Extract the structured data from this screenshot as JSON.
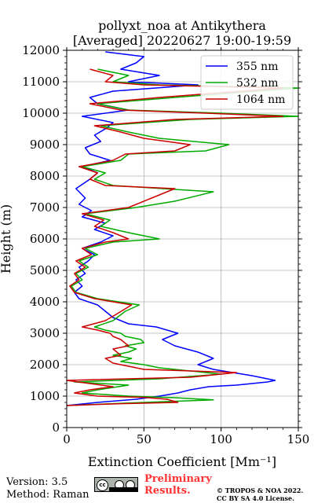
{
  "chart_data": {
    "type": "line",
    "title_line1": "pollyxt_noa at Antikythera",
    "title_line2": "[Averaged] 20220627 19:00-19:59",
    "xlabel": "Extinction Coefficient [Mm⁻¹]",
    "ylabel": "Height (m)",
    "xlim": [
      0,
      150
    ],
    "ylim": [
      0,
      12000
    ],
    "xticks": [
      "0",
      "50",
      "100",
      "150"
    ],
    "yticks": [
      "0",
      "1000",
      "2000",
      "3000",
      "4000",
      "5000",
      "6000",
      "7000",
      "8000",
      "9000",
      "10000",
      "11000",
      "12000"
    ],
    "grid": true,
    "legend_position": "top-right",
    "series": [
      {
        "name": "355 nm",
        "color": "#0000ff",
        "points": [
          [
            0,
            700
          ],
          [
            20,
            800
          ],
          [
            45,
            900
          ],
          [
            60,
            1000
          ],
          [
            72,
            1100
          ],
          [
            80,
            1200
          ],
          [
            92,
            1300
          ],
          [
            110,
            1350
          ],
          [
            130,
            1450
          ],
          [
            135,
            1500
          ],
          [
            120,
            1650
          ],
          [
            95,
            1850
          ],
          [
            85,
            2000
          ],
          [
            95,
            2200
          ],
          [
            85,
            2400
          ],
          [
            70,
            2600
          ],
          [
            62,
            2800
          ],
          [
            72,
            3000
          ],
          [
            58,
            3200
          ],
          [
            40,
            3300
          ],
          [
            30,
            3500
          ],
          [
            25,
            3700
          ],
          [
            20,
            3900
          ],
          [
            8,
            4100
          ],
          [
            5,
            4300
          ],
          [
            10,
            4500
          ],
          [
            6,
            4700
          ],
          [
            12,
            4900
          ],
          [
            8,
            5100
          ],
          [
            14,
            5300
          ],
          [
            18,
            5500
          ],
          [
            10,
            5700
          ],
          [
            22,
            5900
          ],
          [
            30,
            6100
          ],
          [
            18,
            6300
          ],
          [
            25,
            6500
          ],
          [
            10,
            6700
          ],
          [
            16,
            6900
          ],
          [
            8,
            7100
          ],
          [
            12,
            7300
          ],
          [
            6,
            7600
          ],
          [
            15,
            7900
          ],
          [
            20,
            8100
          ],
          [
            10,
            8300
          ],
          [
            28,
            8500
          ],
          [
            15,
            8700
          ],
          [
            12,
            8900
          ],
          [
            22,
            9100
          ],
          [
            18,
            9300
          ],
          [
            25,
            9500
          ],
          [
            30,
            9700
          ],
          [
            10,
            9900
          ],
          [
            40,
            10100
          ],
          [
            20,
            10300
          ],
          [
            15,
            10500
          ],
          [
            30,
            10700
          ],
          [
            85,
            10900
          ],
          [
            40,
            11000
          ],
          [
            60,
            11200
          ],
          [
            35,
            11400
          ],
          [
            45,
            11600
          ],
          [
            50,
            11800
          ],
          [
            25,
            11950
          ]
        ]
      },
      {
        "name": "532 nm",
        "color": "#00aa00",
        "points": [
          [
            0,
            700
          ],
          [
            50,
            800
          ],
          [
            95,
            880
          ],
          [
            70,
            950
          ],
          [
            40,
            1000
          ],
          [
            10,
            1100
          ],
          [
            20,
            1200
          ],
          [
            40,
            1350
          ],
          [
            5,
            1450
          ],
          [
            60,
            1550
          ],
          [
            100,
            1700
          ],
          [
            80,
            1800
          ],
          [
            60,
            1900
          ],
          [
            50,
            2000
          ],
          [
            35,
            2100
          ],
          [
            42,
            2200
          ],
          [
            30,
            2300
          ],
          [
            40,
            2400
          ],
          [
            45,
            2500
          ],
          [
            38,
            2600
          ],
          [
            50,
            2700
          ],
          [
            48,
            2800
          ],
          [
            38,
            2900
          ],
          [
            35,
            3000
          ],
          [
            25,
            3100
          ],
          [
            18,
            3200
          ],
          [
            30,
            3400
          ],
          [
            38,
            3700
          ],
          [
            47,
            3900
          ],
          [
            20,
            4100
          ],
          [
            6,
            4300
          ],
          [
            3,
            4500
          ],
          [
            10,
            4700
          ],
          [
            6,
            4900
          ],
          [
            14,
            5100
          ],
          [
            8,
            5300
          ],
          [
            20,
            5500
          ],
          [
            12,
            5700
          ],
          [
            30,
            5900
          ],
          [
            60,
            6000
          ],
          [
            40,
            6200
          ],
          [
            22,
            6400
          ],
          [
            28,
            6600
          ],
          [
            12,
            6800
          ],
          [
            45,
            7000
          ],
          [
            70,
            7200
          ],
          [
            95,
            7500
          ],
          [
            30,
            7700
          ],
          [
            18,
            7900
          ],
          [
            25,
            8100
          ],
          [
            10,
            8300
          ],
          [
            35,
            8500
          ],
          [
            40,
            8700
          ],
          [
            90,
            8800
          ],
          [
            105,
            9000
          ],
          [
            60,
            9200
          ],
          [
            40,
            9400
          ],
          [
            22,
            9600
          ],
          [
            80,
            9800
          ],
          [
            150,
            9900
          ],
          [
            100,
            10000
          ],
          [
            40,
            10100
          ],
          [
            20,
            10300
          ],
          [
            70,
            10500
          ],
          [
            150,
            10800
          ],
          [
            60,
            10900
          ],
          [
            30,
            11000
          ],
          [
            40,
            11200
          ],
          [
            20,
            11400
          ]
        ]
      },
      {
        "name": "1064 nm",
        "color": "#cc0000",
        "points": [
          [
            0,
            700
          ],
          [
            35,
            760
          ],
          [
            72,
            800
          ],
          [
            65,
            900
          ],
          [
            50,
            960
          ],
          [
            20,
            1000
          ],
          [
            5,
            1100
          ],
          [
            15,
            1200
          ],
          [
            30,
            1300
          ],
          [
            0,
            1500
          ],
          [
            80,
            1600
          ],
          [
            110,
            1750
          ],
          [
            50,
            1850
          ],
          [
            40,
            1950
          ],
          [
            30,
            2050
          ],
          [
            25,
            2200
          ],
          [
            35,
            2300
          ],
          [
            30,
            2500
          ],
          [
            40,
            2600
          ],
          [
            35,
            2800
          ],
          [
            30,
            2900
          ],
          [
            28,
            3000
          ],
          [
            20,
            3100
          ],
          [
            10,
            3200
          ],
          [
            25,
            3400
          ],
          [
            32,
            3600
          ],
          [
            42,
            3900
          ],
          [
            18,
            4100
          ],
          [
            5,
            4300
          ],
          [
            2,
            4500
          ],
          [
            8,
            4700
          ],
          [
            5,
            4900
          ],
          [
            12,
            5100
          ],
          [
            6,
            5300
          ],
          [
            16,
            5500
          ],
          [
            10,
            5700
          ],
          [
            25,
            5900
          ],
          [
            40,
            6000
          ],
          [
            30,
            6200
          ],
          [
            18,
            6400
          ],
          [
            24,
            6600
          ],
          [
            10,
            6800
          ],
          [
            40,
            7000
          ],
          [
            55,
            7300
          ],
          [
            70,
            7600
          ],
          [
            25,
            7700
          ],
          [
            15,
            7900
          ],
          [
            20,
            8100
          ],
          [
            8,
            8300
          ],
          [
            30,
            8500
          ],
          [
            38,
            8700
          ],
          [
            70,
            8800
          ],
          [
            80,
            9000
          ],
          [
            50,
            9200
          ],
          [
            35,
            9400
          ],
          [
            18,
            9600
          ],
          [
            70,
            9800
          ],
          [
            140,
            9900
          ],
          [
            90,
            10000
          ],
          [
            35,
            10100
          ],
          [
            15,
            10300
          ],
          [
            60,
            10500
          ],
          [
            140,
            10800
          ],
          [
            50,
            10900
          ],
          [
            25,
            11000
          ],
          [
            30,
            11200
          ],
          [
            15,
            11400
          ]
        ]
      }
    ]
  },
  "footer": {
    "version_line": "Version: 3.5",
    "method_line": "Method: Raman",
    "prelim_line1": "Preliminary",
    "prelim_line2": "Results.",
    "copyright_line1": "© TROPOS & NOA 2022.",
    "copyright_line2": "CC BY SA 4.0 License."
  },
  "badge": {
    "cc_text": "cc"
  }
}
